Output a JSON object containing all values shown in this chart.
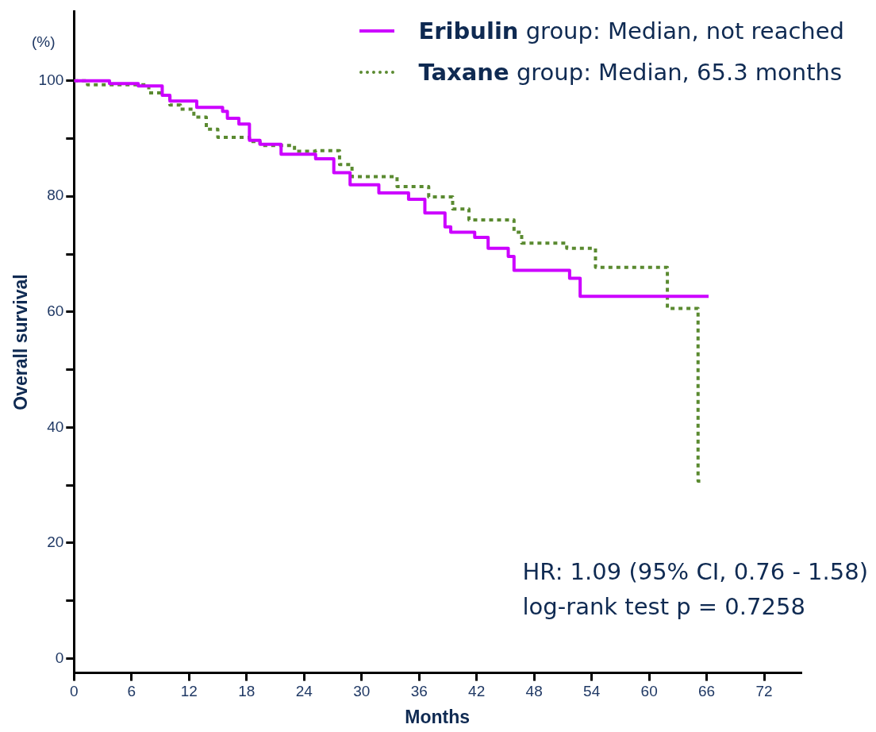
{
  "chart_data": {
    "type": "step",
    "xlabel": "Months",
    "ylabel": "Overall survival",
    "annotations": [
      "(%)",
      "HR: 1.09 (95% CI, 0.76 - 1.58)",
      "log-rank test p = 0.7258"
    ],
    "xlim": [
      0,
      75.8
    ],
    "xticks": [
      0,
      6,
      12,
      18,
      24,
      30,
      36,
      42,
      48,
      54,
      60,
      66,
      72
    ],
    "ylim": [
      -2.5,
      112
    ],
    "yticks": [
      0,
      {
        "value": 10,
        "label": null
      },
      20,
      {
        "value": 30,
        "label": null
      },
      40,
      {
        "value": 50,
        "label": null
      },
      60,
      {
        "value": 70,
        "label": null
      },
      80,
      {
        "value": 90,
        "label": null
      },
      100
    ],
    "grid": false,
    "legend": "top right",
    "marker": "none",
    "series": [
      {
        "name": "Eribulin group: Median, not reached",
        "color": "#cc00ff",
        "line_style": "solid",
        "x": [
          0,
          3.7,
          6.7,
          9.2,
          10,
          12.8,
          15.5,
          16,
          17.2,
          18.3,
          19.4,
          21.6,
          25.2,
          27.1,
          28.8,
          31.8,
          34.9,
          36.6,
          38.7,
          39.3,
          41.8,
          43.2,
          45.3,
          45.9,
          51.7,
          52.8,
          66.2
        ],
        "values": [
          100,
          99.5,
          99.1,
          97.5,
          96.5,
          95.4,
          94.7,
          93.5,
          92.5,
          89.7,
          89,
          87.3,
          86.5,
          84.1,
          82,
          80.6,
          79.5,
          77.1,
          74.7,
          73.8,
          72.9,
          71,
          69.6,
          67.2,
          65.8,
          62.7,
          62.7
        ]
      },
      {
        "name": "Taxane group: Median, 65.3 months",
        "color": "#5a8a30",
        "line_style": "dotted",
        "x": [
          0,
          1.4,
          7.8,
          9.4,
          10,
          11.1,
          12.5,
          13.8,
          15,
          18.3,
          19.4,
          23,
          25.2,
          27.7,
          29,
          33.7,
          37,
          39.5,
          41.2,
          45.9,
          46.7,
          51.4,
          54.4,
          61.9,
          65.1,
          65.5
        ],
        "values": [
          100,
          99.3,
          97.9,
          97.5,
          95.8,
          95.1,
          93.7,
          91.6,
          90.2,
          89.5,
          88.8,
          87.8,
          87.9,
          85.5,
          83.4,
          81.7,
          79.9,
          77.8,
          75.9,
          73.8,
          71.9,
          71,
          67.7,
          60.6,
          30.7,
          30.7
        ]
      }
    ]
  }
}
